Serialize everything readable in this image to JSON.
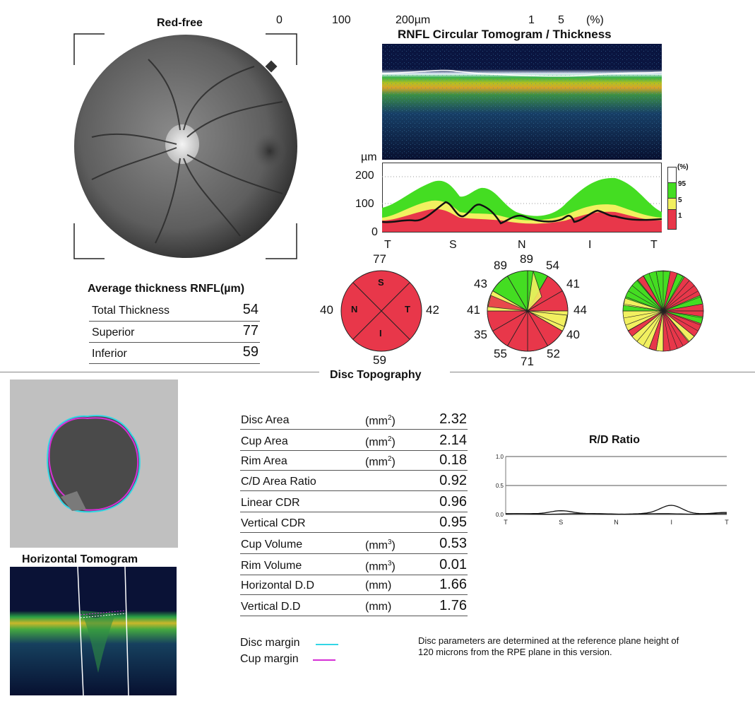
{
  "fundus": {
    "title": "Red-free"
  },
  "scale": {
    "labels": [
      "0",
      "100",
      "200µm"
    ],
    "pct_labels": [
      "1",
      "5",
      "(%)"
    ]
  },
  "rnfl": {
    "title": "RNFL Circular Tomogram / Thickness",
    "y_unit": "µm",
    "y_ticks": [
      "200",
      "100",
      "0"
    ],
    "x_ticks": [
      "T",
      "S",
      "N",
      "I",
      "T"
    ],
    "legend_title": "(%)",
    "legend_labels": [
      "95",
      "5",
      "1"
    ],
    "colors": {
      "normal": "#44dd22",
      "borderline": "#f2f060",
      "abnormal": "#e8374a"
    }
  },
  "average": {
    "title": "Average thickness RNFL(µm)",
    "rows": [
      {
        "label": "Total Thickness",
        "value": "54"
      },
      {
        "label": "Superior",
        "value": "77"
      },
      {
        "label": "Inferior",
        "value": "59"
      }
    ]
  },
  "quadrant": {
    "values": {
      "top": "77",
      "left": "40",
      "right": "42",
      "bottom": "59"
    },
    "letters": {
      "s": "S",
      "n": "N",
      "t": "T",
      "i": "I"
    }
  },
  "clock": {
    "values": [
      "89",
      "54",
      "41",
      "44",
      "40",
      "52",
      "71",
      "55",
      "35",
      "41",
      "43",
      "89"
    ]
  },
  "disc": {
    "section_title": "Disc Topography",
    "horizontal_title": "Horizontal Tomogram",
    "params": [
      {
        "label": "Disc Area",
        "unit": "(mm",
        "sup": "2",
        "unit_end": ")",
        "value": "2.32"
      },
      {
        "label": "Cup Area",
        "unit": "(mm",
        "sup": "2",
        "unit_end": ")",
        "value": "2.14"
      },
      {
        "label": "Rim Area",
        "unit": "(mm",
        "sup": "2",
        "unit_end": ")",
        "value": "0.18"
      },
      {
        "label": "C/D Area Ratio",
        "unit": "",
        "sup": "",
        "unit_end": "",
        "value": "0.92"
      },
      {
        "label": "Linear CDR",
        "unit": "",
        "sup": "",
        "unit_end": "",
        "value": "0.96"
      },
      {
        "label": "Vertical CDR",
        "unit": "",
        "sup": "",
        "unit_end": "",
        "value": "0.95"
      },
      {
        "label": "Cup Volume",
        "unit": "(mm",
        "sup": "3",
        "unit_end": ")",
        "value": "0.53"
      },
      {
        "label": "Rim Volume",
        "unit": "(mm",
        "sup": "3",
        "unit_end": ")",
        "value": "0.01"
      },
      {
        "label": "Horizontal D.D",
        "unit": "(mm)",
        "sup": "",
        "unit_end": "",
        "value": "1.66"
      },
      {
        "label": "Vertical D.D",
        "unit": "(mm)",
        "sup": "",
        "unit_end": "",
        "value": "1.76"
      }
    ],
    "legend": {
      "disc_margin": "Disc margin",
      "cup_margin": "Cup margin",
      "disc_color": "#33d6e6",
      "cup_color": "#d62fd6"
    },
    "note_line1": "Disc parameters are determined at the reference plane height of",
    "note_line2": "120 microns from the RPE plane in this version."
  },
  "rd_ratio": {
    "title": "R/D Ratio",
    "y_ticks": [
      "1.0",
      "0.5",
      "0.0"
    ],
    "x_ticks": [
      "T",
      "S",
      "N",
      "I",
      "T"
    ]
  },
  "chart_data": {
    "type": "line",
    "title": "R/D Ratio",
    "x": [
      "T",
      "S",
      "N",
      "I",
      "T"
    ],
    "ylim": [
      0,
      1.0
    ],
    "grid": true,
    "series": [
      {
        "values": [
          0.0,
          0.06,
          0.0,
          0.0,
          0.0
        ]
      },
      {
        "values": [
          0.0,
          0.0,
          0.0,
          0.15,
          0.02
        ]
      }
    ]
  }
}
